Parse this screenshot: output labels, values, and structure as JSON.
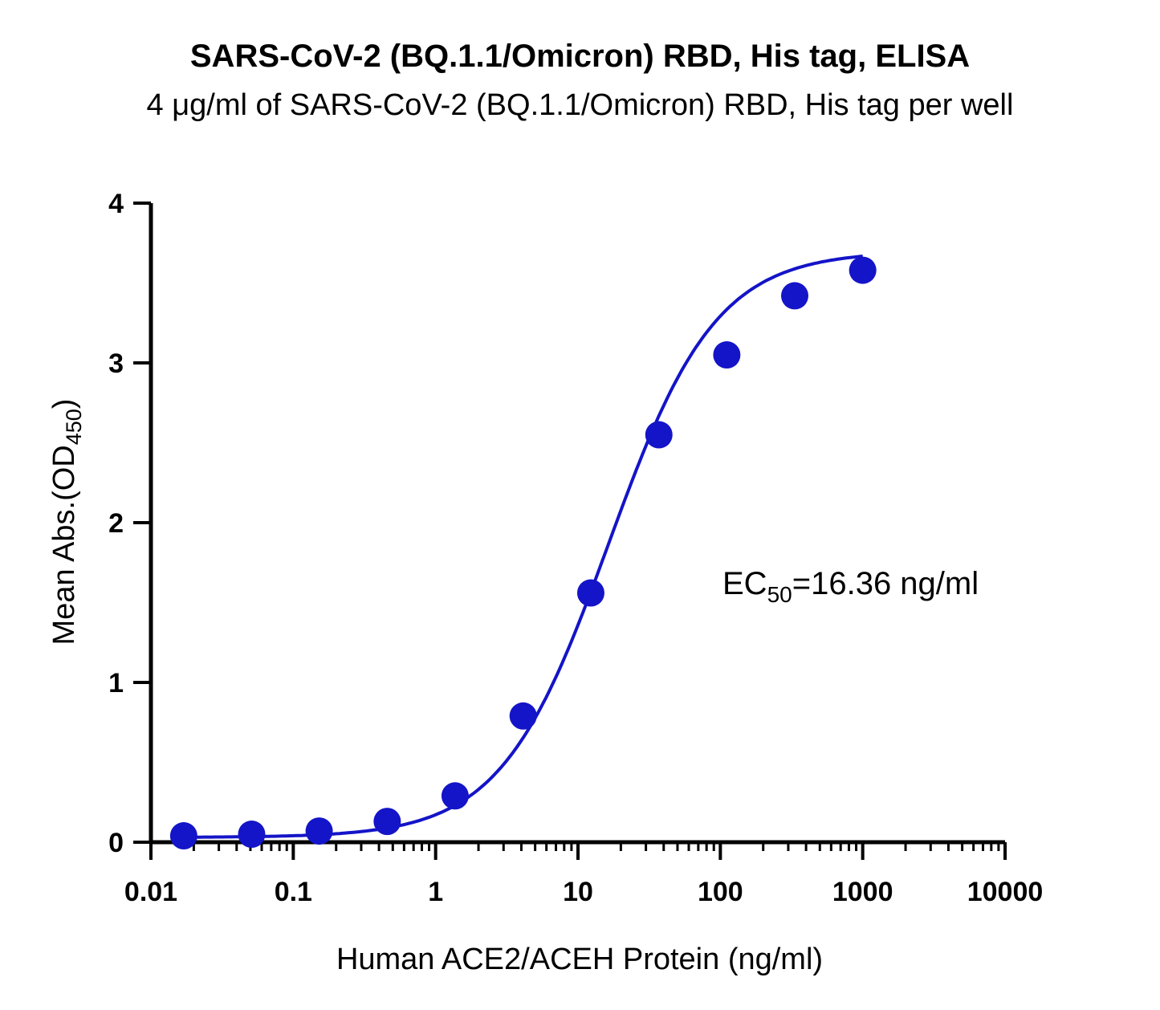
{
  "chart_data": {
    "type": "scatter",
    "title": "SARS-CoV-2 (BQ.1.1/Omicron) RBD, His tag, ELISA",
    "subtitle": "4 μg/ml of SARS-CoV-2 (BQ.1.1/Omicron) RBD, His tag per well",
    "xlabel": "Human ACE2/ACEH Protein (ng/ml)",
    "ylabel_main": "Mean Abs.(OD",
    "ylabel_sub": "450",
    "ylabel_end": ")",
    "x_scale": "log",
    "xlim": [
      0.01,
      10000
    ],
    "ylim": [
      0,
      4
    ],
    "x_ticks": [
      "0.01",
      "0.1",
      "1",
      "10",
      "100",
      "1000",
      "10000"
    ],
    "x_tick_values": [
      0.01,
      0.1,
      1,
      10,
      100,
      1000,
      10000
    ],
    "y_ticks": [
      "0",
      "1",
      "2",
      "3",
      "4"
    ],
    "y_tick_values": [
      0,
      1,
      2,
      3,
      4
    ],
    "grid": false,
    "series": [
      {
        "color": "#1414c8",
        "x": [
          0.017,
          0.051,
          0.152,
          0.457,
          1.37,
          4.12,
          12.3,
          37.0,
          111,
          333,
          1000
        ],
        "y": [
          0.04,
          0.05,
          0.07,
          0.13,
          0.29,
          0.79,
          1.56,
          2.55,
          3.05,
          3.42,
          3.58
        ]
      }
    ],
    "fit_curve": {
      "model": "4PL",
      "bottom": 0.03,
      "top": 3.7,
      "ec50": 16.36,
      "hill": 1.15,
      "color": "#1414c8"
    },
    "annotation": {
      "prefix": "EC",
      "sub": "50",
      "suffix": "=16.36 ng/ml"
    }
  }
}
